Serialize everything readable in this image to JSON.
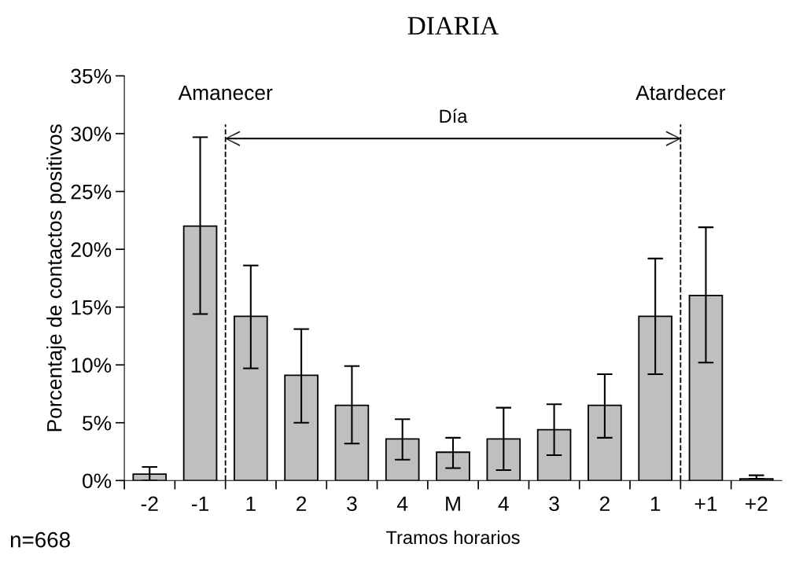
{
  "chart_data": {
    "type": "bar",
    "title": "DIARIA",
    "xlabel": "Tramos horarios",
    "ylabel": "Porcentaje de contactos positivos",
    "categories": [
      "-2",
      "-1",
      "1",
      "2",
      "3",
      "4",
      "M",
      "4",
      "3",
      "2",
      "1",
      "+1",
      "+2"
    ],
    "values": [
      0.55,
      22.0,
      14.2,
      9.1,
      6.5,
      3.6,
      2.45,
      3.6,
      4.4,
      6.5,
      14.2,
      16.0,
      0.15
    ],
    "errors": [
      [
        0,
        1.17
      ],
      [
        14.4,
        29.7
      ],
      [
        9.7,
        18.6
      ],
      [
        5.0,
        13.1
      ],
      [
        3.2,
        9.9
      ],
      [
        1.8,
        5.3
      ],
      [
        1.07,
        3.7
      ],
      [
        0.9,
        6.3
      ],
      [
        2.2,
        6.6
      ],
      [
        3.7,
        9.2
      ],
      [
        9.2,
        19.2
      ],
      [
        10.2,
        21.9
      ],
      [
        0.15,
        0.45
      ]
    ],
    "color": "#bfbfbf",
    "ylim": [
      0,
      35
    ],
    "yticks": [
      {
        "value": 0,
        "label": "0%"
      },
      {
        "value": 5,
        "label": "5%"
      },
      {
        "value": 10,
        "label": "10%"
      },
      {
        "value": 15,
        "label": "15%"
      },
      {
        "value": 20,
        "label": "20%"
      },
      {
        "value": 25,
        "label": "25%"
      },
      {
        "value": 30,
        "label": "30%"
      },
      {
        "value": 35,
        "label": "35%"
      }
    ],
    "annotations": [
      "Amanecer",
      "Atardecer",
      "Día",
      "n=668"
    ],
    "grid": false,
    "legend": false
  }
}
